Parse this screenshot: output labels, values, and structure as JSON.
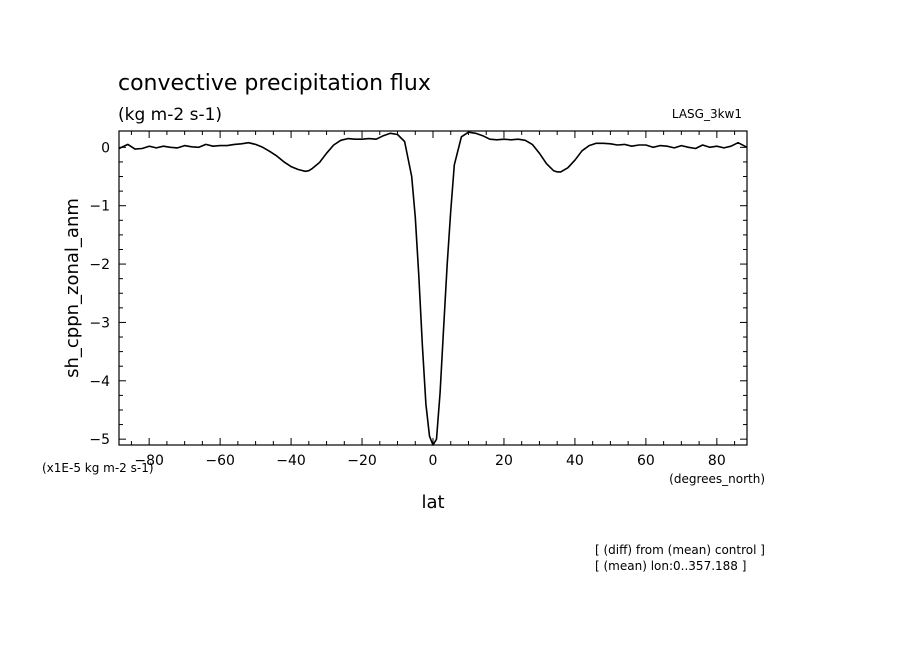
{
  "chart_data": {
    "type": "line",
    "title": "convective precipitation flux",
    "units": "(kg m-2 s-1)",
    "dataset": "LASG_3kw1",
    "ylabel": "sh_cppn_zonal_anm",
    "yscale_note": "(x1E-5 kg m-2 s-1)",
    "xlabel": "lat",
    "xunits": "(degrees_north)",
    "notes": [
      "[ (diff) from (mean) control ]",
      "[ (mean) lon:0..357.188 ]"
    ],
    "xlim": [
      -88.5,
      88.5
    ],
    "ylim": [
      -5.1,
      0.28
    ],
    "xticks": [
      -80,
      -60,
      -40,
      -20,
      0,
      20,
      40,
      60,
      80
    ],
    "yticks": [
      0,
      -1,
      -2,
      -3,
      -4,
      -5
    ],
    "x": [
      -88.5,
      -86,
      -84,
      -82,
      -80,
      -78,
      -76,
      -74,
      -72,
      -70,
      -68,
      -66,
      -64,
      -62,
      -60,
      -58,
      -56,
      -54,
      -52,
      -50,
      -48,
      -46,
      -44,
      -42,
      -40,
      -38,
      -36,
      -35,
      -34,
      -32,
      -30,
      -28,
      -26,
      -24,
      -22,
      -20,
      -18,
      -16,
      -14,
      -12,
      -10,
      -8,
      -6,
      -5,
      -4,
      -3,
      -2,
      -1,
      0,
      1,
      2,
      3,
      4,
      5,
      6,
      8,
      10,
      12,
      14,
      16,
      18,
      20,
      22,
      24,
      26,
      28,
      30,
      32,
      34,
      35,
      36,
      38,
      40,
      42,
      44,
      46,
      48,
      50,
      52,
      54,
      56,
      58,
      60,
      62,
      64,
      66,
      68,
      70,
      72,
      74,
      76,
      78,
      80,
      82,
      84,
      86,
      88.5
    ],
    "values": [
      -0.02,
      0.05,
      -0.03,
      -0.02,
      0.02,
      -0.01,
      0.02,
      0.0,
      -0.01,
      0.03,
      0.01,
      0.0,
      0.05,
      0.02,
      0.03,
      0.03,
      0.05,
      0.06,
      0.08,
      0.05,
      0.0,
      -0.07,
      -0.15,
      -0.25,
      -0.33,
      -0.38,
      -0.41,
      -0.4,
      -0.36,
      -0.26,
      -0.1,
      0.04,
      0.12,
      0.15,
      0.14,
      0.14,
      0.15,
      0.14,
      0.2,
      0.24,
      0.22,
      0.1,
      -0.5,
      -1.2,
      -2.2,
      -3.4,
      -4.4,
      -4.95,
      -5.1,
      -5.0,
      -4.2,
      -3.1,
      -2.0,
      -1.1,
      -0.3,
      0.18,
      0.26,
      0.24,
      0.2,
      0.14,
      0.13,
      0.14,
      0.13,
      0.14,
      0.12,
      0.05,
      -0.1,
      -0.28,
      -0.4,
      -0.42,
      -0.42,
      -0.35,
      -0.22,
      -0.06,
      0.03,
      0.07,
      0.07,
      0.06,
      0.04,
      0.05,
      0.02,
      0.04,
      0.04,
      0.0,
      0.03,
      0.02,
      -0.01,
      0.03,
      0.0,
      -0.02,
      0.04,
      0.0,
      0.02,
      -0.01,
      0.02,
      0.08,
      0.0
    ]
  }
}
